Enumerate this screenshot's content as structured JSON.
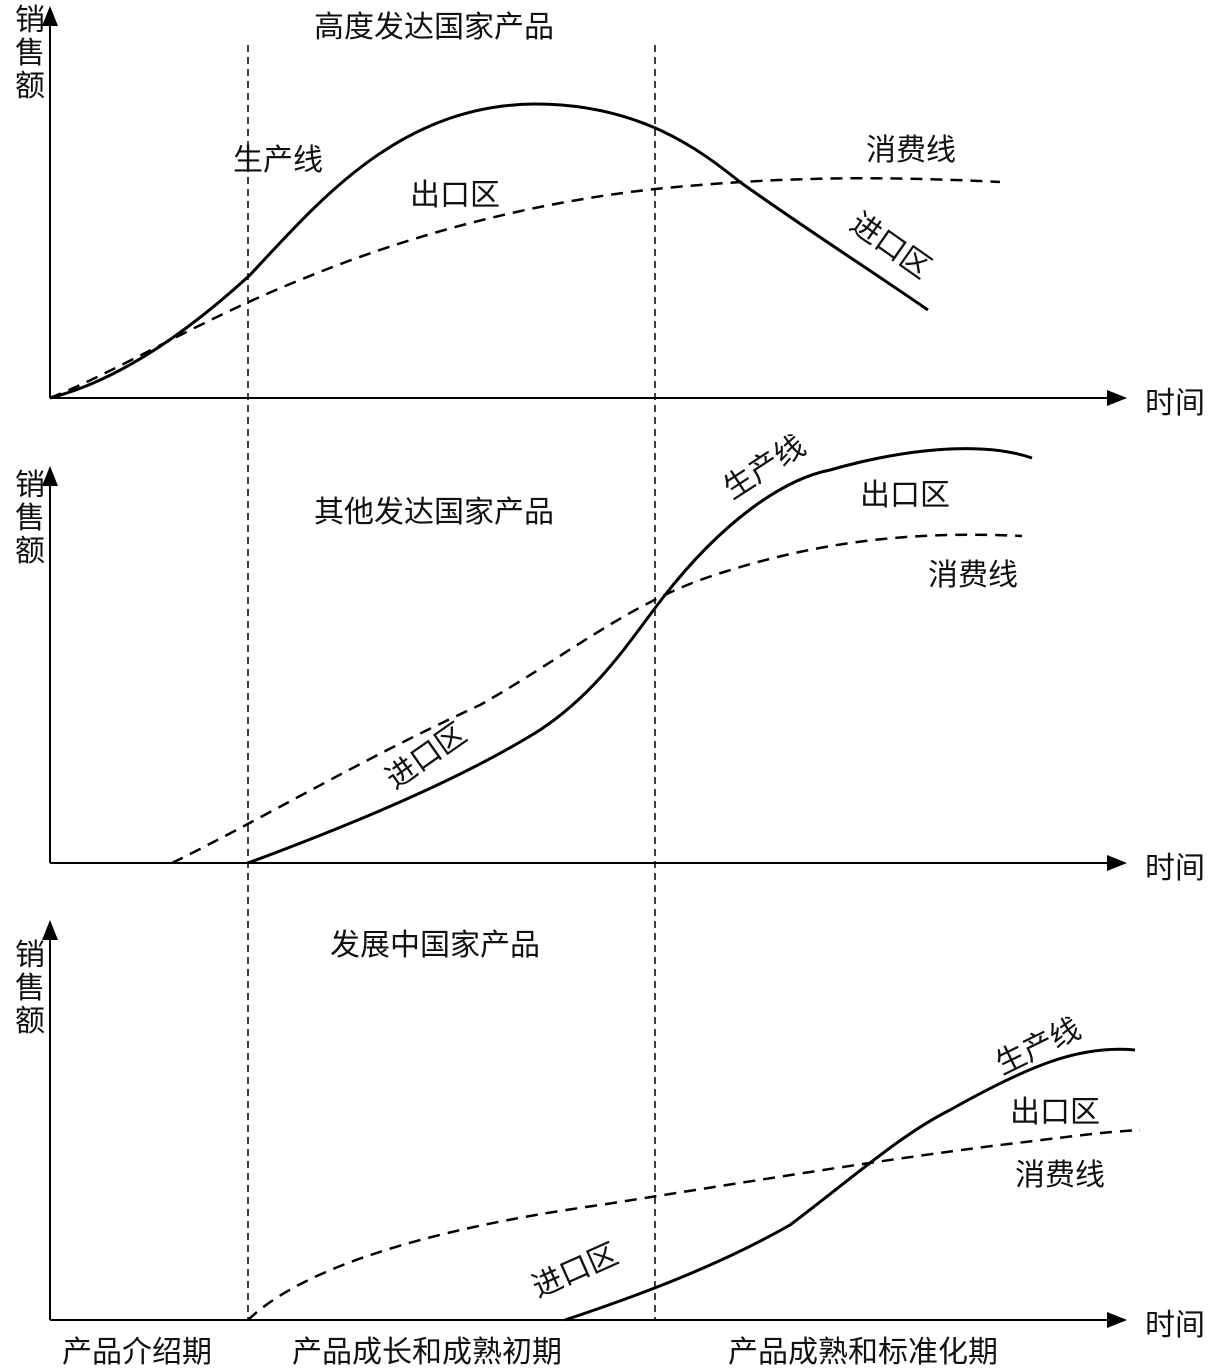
{
  "panels": [
    {
      "title": "高度发达国家产品",
      "ylabel": [
        "销",
        "售",
        "额"
      ],
      "xlabel": "时间",
      "production_label": "生产线",
      "consumption_label": "消费线",
      "export_label": "出口区",
      "import_label": "进口区"
    },
    {
      "title": "其他发达国家产品",
      "ylabel": [
        "销",
        "售",
        "额"
      ],
      "xlabel": "时间",
      "production_label": "生产线",
      "consumption_label": "消费线",
      "export_label": "出口区",
      "import_label": "进口区"
    },
    {
      "title": "发展中国家产品",
      "ylabel": [
        "销",
        "售",
        "额"
      ],
      "xlabel": "时间",
      "production_label": "生产线",
      "consumption_label": "消费线",
      "export_label": "出口区",
      "import_label": "进口区"
    }
  ],
  "phases": [
    "产品介绍期",
    "产品成长和成熟初期",
    "产品成熟和标准化期"
  ]
}
